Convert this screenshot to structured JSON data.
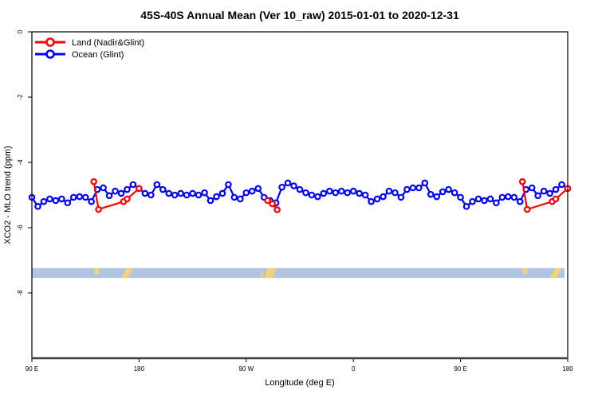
{
  "title": "45S-40S Annual Mean (Ver 10_raw)   2015-01-01 to 2020-12-31",
  "legend": {
    "items": [
      {
        "label": "Land (Nadir&Glint)",
        "color": "#ff0000"
      },
      {
        "label": "Ocean (Glint)",
        "color": "#0000ff"
      }
    ]
  },
  "axes": {
    "x": {
      "label": "Longitude (deg E)",
      "ticks": [
        {
          "pos": 90,
          "label": "90 E"
        },
        {
          "pos": 180,
          "label": "180"
        },
        {
          "pos": 270,
          "label": "90 W"
        },
        {
          "pos": 360,
          "label": "0"
        },
        {
          "pos": 450,
          "label": "90 E"
        },
        {
          "pos": 540,
          "label": "180"
        }
      ]
    },
    "y": {
      "label": "XCO2 - MLO trend (ppm)",
      "ticks": [
        {
          "pos": 0,
          "label": "0"
        },
        {
          "pos": -2,
          "label": "-2"
        },
        {
          "pos": -4,
          "label": "-4"
        },
        {
          "pos": -6,
          "label": "-6"
        },
        {
          "pos": -8,
          "label": "-8"
        }
      ]
    }
  },
  "colors": {
    "land_series": "#ff0000",
    "ocean_series": "#0000ff",
    "strip_ocean": "#aec6e1",
    "strip_land": "#f5d372",
    "frame": "#000000",
    "bottom_axis": "#3f3f3f"
  },
  "chart_data": {
    "type": "line",
    "title": "45S-40S Annual Mean (Ver 10_raw)   2015-01-01 to 2020-12-31",
    "xlabel": "Longitude (deg E)",
    "ylabel": "XCO2 - MLO trend (ppm)",
    "xlim": [
      90,
      540
    ],
    "ylim": [
      -10,
      0
    ],
    "grid": false,
    "legend_position": "top-left",
    "series": [
      {
        "name": "Ocean (Glint)",
        "color": "#0000ff",
        "marker": "open-circle",
        "x": [
          90,
          95,
          100,
          105,
          110,
          115,
          120,
          125,
          130,
          135,
          140,
          145,
          150,
          155,
          160,
          165,
          170,
          175,
          180,
          185,
          190,
          195,
          200,
          205,
          210,
          215,
          220,
          225,
          230,
          235,
          240,
          245,
          250,
          255,
          260,
          265,
          270,
          275,
          280,
          285,
          290,
          295,
          300,
          305,
          310,
          315,
          320,
          325,
          330,
          335,
          340,
          345,
          350,
          355,
          360,
          365,
          370,
          375,
          380,
          385,
          390,
          395,
          400,
          405,
          410,
          415,
          420,
          425,
          430,
          435,
          440,
          445,
          450,
          455,
          460,
          465,
          470,
          475,
          480,
          485,
          490,
          495,
          500,
          505,
          510,
          515,
          520,
          525,
          530,
          535,
          540
        ],
        "y": [
          -5.07,
          -5.35,
          -5.2,
          -5.12,
          -5.17,
          -5.12,
          -5.24,
          -5.07,
          -5.05,
          -5.07,
          -5.2,
          -4.83,
          -4.78,
          -5.02,
          -4.88,
          -4.95,
          -4.83,
          -4.68,
          -4.8,
          -4.95,
          -5.0,
          -4.68,
          -4.83,
          -4.95,
          -5.0,
          -4.95,
          -5.0,
          -4.95,
          -5.0,
          -4.93,
          -5.17,
          -5.05,
          -4.95,
          -4.68,
          -5.07,
          -5.12,
          -4.93,
          -4.88,
          -4.8,
          -5.07,
          -5.17,
          -5.24,
          -4.76,
          -4.63,
          -4.72,
          -4.83,
          -4.93,
          -5.0,
          -5.05,
          -4.95,
          -4.88,
          -4.93,
          -4.88,
          -4.93,
          -4.88,
          -4.95,
          -5.0,
          -5.2,
          -5.12,
          -5.05,
          -4.88,
          -4.93,
          -5.07,
          -4.83,
          -4.78,
          -4.78,
          -4.63,
          -4.98,
          -5.05,
          -4.9,
          -4.83,
          -4.93,
          -5.07,
          -5.35,
          -5.2,
          -5.12,
          -5.17,
          -5.12,
          -5.24,
          -5.07,
          -5.05,
          -5.07,
          -5.2,
          -4.83,
          -4.78,
          -5.02,
          -4.88,
          -4.95,
          -4.83,
          -4.68,
          -4.8
        ]
      },
      {
        "name": "Land (Nadir&Glint)",
        "color": "#ff0000",
        "marker": "open-circle",
        "segments": [
          {
            "x": [
              142,
              146,
              167,
              170,
              180
            ],
            "y": [
              -4.59,
              -5.44,
              -5.2,
              -5.12,
              -4.8
            ]
          },
          {
            "x": [
              288,
              292,
              296
            ],
            "y": [
              -5.17,
              -5.27,
              -5.45
            ]
          },
          {
            "x": [
              502,
              506,
              527,
              530,
              540
            ],
            "y": [
              -4.59,
              -5.44,
              -5.2,
              -5.12,
              -4.8
            ]
          }
        ]
      }
    ],
    "map_strip": {
      "description": "ocean-land reference band",
      "ocean_color": "#aec6e1",
      "land_color": "#f5d372",
      "x_range": [
        90,
        537.3
      ],
      "y_top": -7.24,
      "y_bottom": -7.54,
      "land_patches": [
        {
          "x1": 142.3,
          "x2": 146.3,
          "slant": 0,
          "h1": 0.0,
          "h2": 0.6
        },
        {
          "x1": 165.0,
          "x2": 170.5,
          "slant": 7,
          "h1": 0.0,
          "h2": 1.0
        },
        {
          "x1": 282.5,
          "x2": 284.0,
          "slant": 0,
          "h1": 0.3,
          "h2": 1.0
        },
        {
          "x1": 285.5,
          "x2": 292.5,
          "slant": 4,
          "h1": 0.0,
          "h2": 1.0
        },
        {
          "x1": 502.3,
          "x2": 506.3,
          "slant": 0,
          "h1": 0.0,
          "h2": 0.6
        },
        {
          "x1": 525.0,
          "x2": 530.5,
          "slant": 7,
          "h1": 0.0,
          "h2": 1.0
        }
      ]
    }
  }
}
